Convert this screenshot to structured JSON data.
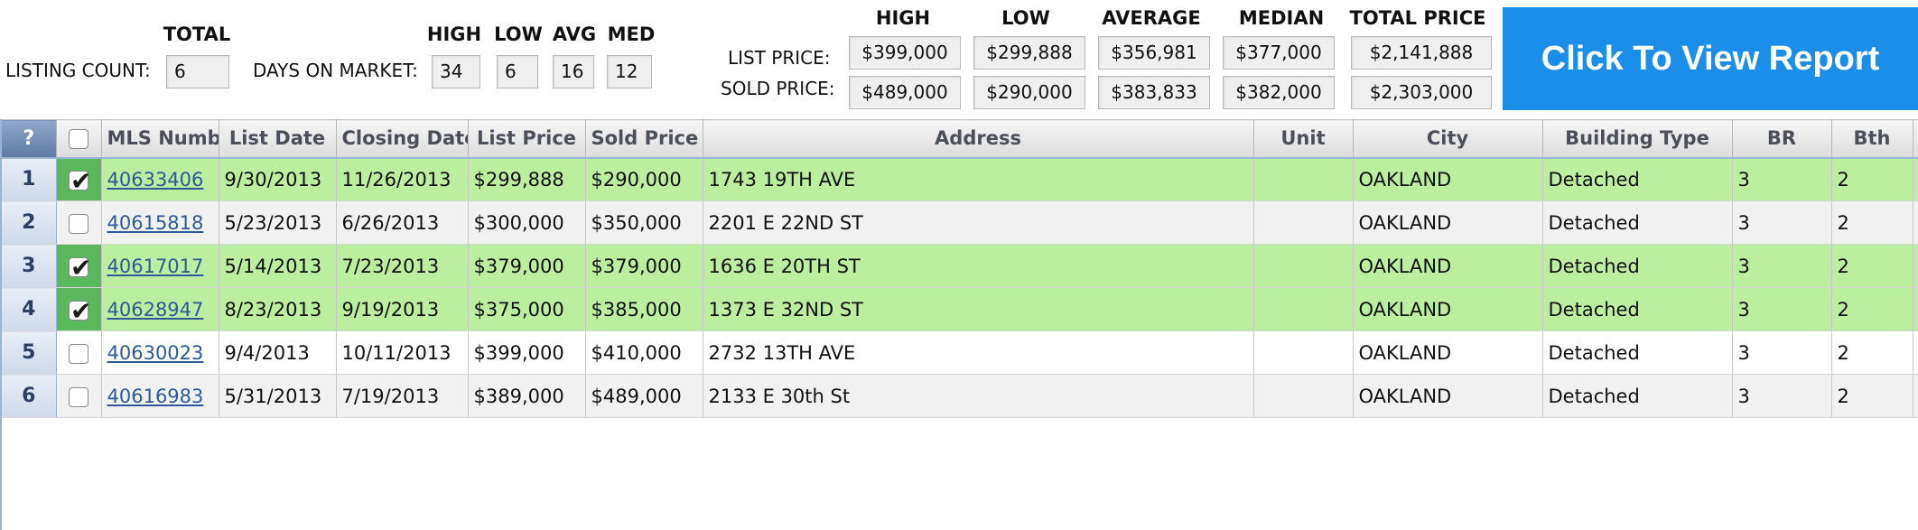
{
  "summary": {
    "total_label": "TOTAL",
    "listing_count_label": "LISTING COUNT:",
    "listing_count": "6",
    "dom_label": "DAYS ON MARKET:",
    "dom_headers": {
      "high": "HIGH",
      "low": "LOW",
      "avg": "AVG",
      "med": "MED"
    },
    "dom_values": {
      "high": "34",
      "low": "6",
      "avg": "16",
      "med": "12"
    },
    "price_headers": {
      "high": "HIGH",
      "low": "LOW",
      "average": "AVERAGE",
      "median": "MEDIAN",
      "total": "TOTAL PRICE"
    },
    "list_price_label": "LIST PRICE:",
    "sold_price_label": "SOLD PRICE:",
    "list_price": {
      "high": "$399,000",
      "low": "$299,888",
      "average": "$356,981",
      "median": "$377,000",
      "total": "$2,141,888"
    },
    "sold_price": {
      "high": "$489,000",
      "low": "$290,000",
      "average": "$383,833",
      "median": "$382,000",
      "total": "$2,303,000"
    }
  },
  "report_button": {
    "label": "Click To View Report"
  },
  "grid": {
    "headers": {
      "help": "?",
      "mls": "MLS Number",
      "list_date": "List Date",
      "closing_date": "Closing Date",
      "list_price": "List Price",
      "sold_price": "Sold Price",
      "address": "Address",
      "unit": "Unit",
      "city": "City",
      "building_type": "Building Type",
      "br": "BR",
      "bth": "Bth"
    },
    "rows": [
      {
        "num": "1",
        "checked": true,
        "mls": "40633406",
        "list_date": "9/30/2013",
        "closing_date": "11/26/2013",
        "list_price": "$299,888",
        "sold_price": "$290,000",
        "address": "1743 19TH AVE",
        "unit": "",
        "city": "OAKLAND",
        "building_type": "Detached",
        "br": "3",
        "bth": "2"
      },
      {
        "num": "2",
        "checked": false,
        "mls": "40615818",
        "list_date": "5/23/2013",
        "closing_date": "6/26/2013",
        "list_price": "$300,000",
        "sold_price": "$350,000",
        "address": "2201 E 22ND ST",
        "unit": "",
        "city": "OAKLAND",
        "building_type": "Detached",
        "br": "3",
        "bth": "2"
      },
      {
        "num": "3",
        "checked": true,
        "mls": "40617017",
        "list_date": "5/14/2013",
        "closing_date": "7/23/2013",
        "list_price": "$379,000",
        "sold_price": "$379,000",
        "address": "1636 E 20TH ST",
        "unit": "",
        "city": "OAKLAND",
        "building_type": "Detached",
        "br": "3",
        "bth": "2"
      },
      {
        "num": "4",
        "checked": true,
        "mls": "40628947",
        "list_date": "8/23/2013",
        "closing_date": "9/19/2013",
        "list_price": "$375,000",
        "sold_price": "$385,000",
        "address": "1373 E 32ND ST",
        "unit": "",
        "city": "OAKLAND",
        "building_type": "Detached",
        "br": "3",
        "bth": "2"
      },
      {
        "num": "5",
        "checked": false,
        "mls": "40630023",
        "list_date": "9/4/2013",
        "closing_date": "10/11/2013",
        "list_price": "$399,000",
        "sold_price": "$410,000",
        "address": "2732 13TH AVE",
        "unit": "",
        "city": "OAKLAND",
        "building_type": "Detached",
        "br": "3",
        "bth": "2"
      },
      {
        "num": "6",
        "checked": false,
        "mls": "40616983",
        "list_date": "5/31/2013",
        "closing_date": "7/19/2013",
        "list_price": "$389,000",
        "sold_price": "$489,000",
        "address": "2133 E 30th St",
        "unit": "",
        "city": "OAKLAND",
        "building_type": "Detached",
        "br": "3",
        "bth": "2"
      }
    ]
  },
  "colors": {
    "selected_row": "#b9ef9f",
    "button": "#1a8ee9",
    "link": "#2d5a99"
  }
}
